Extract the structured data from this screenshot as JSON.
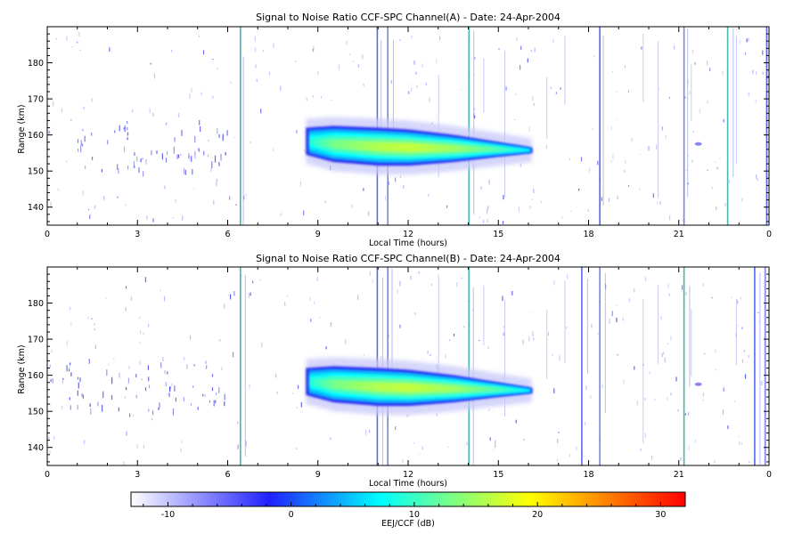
{
  "chart_data": [
    {
      "type": "heatmap",
      "title": "Signal to Noise Ratio CCF-SPC Channel(A) - Date: 24-Apr-2004",
      "xlabel": "Local Time (hours)",
      "ylabel": "Range (km)",
      "xlim": [
        0,
        24
      ],
      "ylim": [
        135,
        190
      ],
      "x_ticks": [
        "0",
        "3",
        "6",
        "9",
        "12",
        "15",
        "18",
        "21",
        "0"
      ],
      "y_ticks": [
        "140",
        "150",
        "160",
        "170",
        "180"
      ],
      "y_tick_values": [
        140,
        150,
        160,
        170,
        180
      ],
      "main_echo": {
        "time_start": 8.6,
        "time_end": 16.1,
        "range_center": [
          158.5,
          156.5,
          155.5
        ],
        "peak_snr_db": 15,
        "profile": [
          {
            "t": 8.6,
            "top": 162.0,
            "bottom": 154.5,
            "snr": 6
          },
          {
            "t": 9.5,
            "top": 162.5,
            "bottom": 152.5,
            "snr": 11
          },
          {
            "t": 11.0,
            "top": 162.0,
            "bottom": 151.5,
            "snr": 14
          },
          {
            "t": 12.0,
            "top": 161.5,
            "bottom": 151.5,
            "snr": 15
          },
          {
            "t": 13.5,
            "top": 160.0,
            "bottom": 152.5,
            "snr": 13
          },
          {
            "t": 15.0,
            "top": 158.0,
            "bottom": 154.0,
            "snr": 9
          },
          {
            "t": 16.1,
            "top": 156.5,
            "bottom": 155.0,
            "snr": 4
          }
        ]
      },
      "interference_lines_hours": [
        6.4,
        10.95,
        11.3,
        14.0,
        18.35,
        21.15,
        22.6,
        23.9
      ]
    },
    {
      "type": "heatmap",
      "title": "Signal to Noise Ratio CCF-SPC Channel(B) - Date: 24-Apr-2004",
      "xlabel": "Local Time (hours)",
      "ylabel": "Range (km)",
      "xlim": [
        0,
        24
      ],
      "ylim": [
        135,
        190
      ],
      "x_ticks": [
        "0",
        "3",
        "6",
        "9",
        "12",
        "15",
        "18",
        "21",
        "0"
      ],
      "y_ticks": [
        "140",
        "150",
        "160",
        "170",
        "180"
      ],
      "y_tick_values": [
        140,
        150,
        160,
        170,
        180
      ],
      "main_echo": {
        "time_start": 8.6,
        "time_end": 16.1,
        "range_center": [
          158.5,
          156.5,
          155.5
        ],
        "peak_snr_db": 15,
        "profile": [
          {
            "t": 8.6,
            "top": 162.0,
            "bottom": 154.5,
            "snr": 6
          },
          {
            "t": 9.5,
            "top": 162.5,
            "bottom": 152.5,
            "snr": 11
          },
          {
            "t": 11.0,
            "top": 162.0,
            "bottom": 151.5,
            "snr": 14
          },
          {
            "t": 12.0,
            "top": 161.5,
            "bottom": 151.5,
            "snr": 15
          },
          {
            "t": 13.5,
            "top": 160.0,
            "bottom": 152.5,
            "snr": 13
          },
          {
            "t": 15.0,
            "top": 158.0,
            "bottom": 154.0,
            "snr": 9
          },
          {
            "t": 16.1,
            "top": 156.5,
            "bottom": 155.0,
            "snr": 4
          }
        ]
      },
      "interference_lines_hours": [
        6.4,
        10.95,
        11.3,
        14.0,
        17.75,
        18.35,
        21.15,
        23.5,
        23.85
      ]
    }
  ],
  "colorbar": {
    "label": "EEJ/CCF (dB)",
    "range": [
      -13,
      32
    ],
    "tick_labels": [
      "-10",
      "0",
      "10",
      "20",
      "30"
    ],
    "tick_values": [
      -10,
      0,
      10,
      20,
      30
    ],
    "colors": [
      "#ffffff",
      "#1c1cff",
      "#00ffff",
      "#ffff00",
      "#ff0000"
    ]
  }
}
